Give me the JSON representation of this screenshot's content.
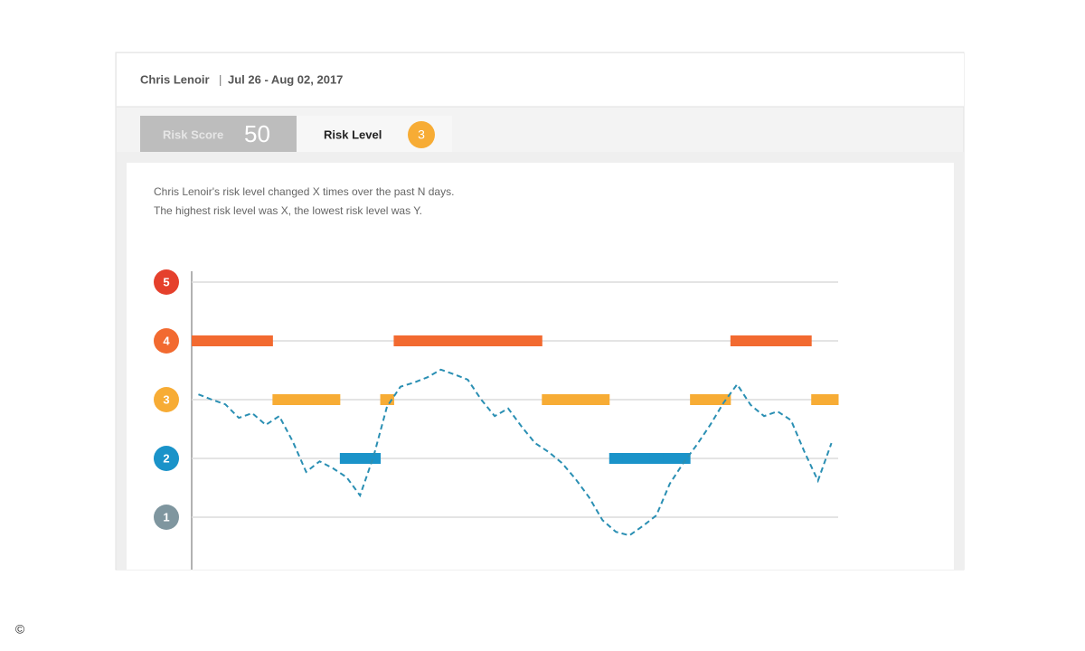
{
  "header": {
    "name": "Chris Lenoir",
    "separator": "|",
    "dates": "Jul 26 - Aug 02, 2017"
  },
  "tabs": [
    {
      "label": "Risk Score",
      "value": 50
    },
    {
      "label": "Risk Level",
      "value": 3
    }
  ],
  "description": [
    "Chris Lenoir's risk level changed X times over the past N days.",
    "The highest risk level was X, the lowest risk level was Y."
  ],
  "chart_data": {
    "type": "line",
    "categories": [
      null,
      null,
      null,
      null,
      null,
      null,
      null,
      null,
      null,
      null,
      null,
      null,
      null,
      null,
      null,
      null,
      null,
      null,
      null,
      null,
      null,
      null,
      null,
      null,
      null,
      null,
      null,
      null,
      null,
      null,
      null,
      null,
      null,
      null,
      null,
      null,
      null,
      null,
      null,
      null,
      null,
      null,
      null,
      null,
      null,
      null,
      null,
      null
    ],
    "series": [
      {
        "type": "bar",
        "values": [
          4,
          4,
          4,
          4,
          4,
          4,
          3,
          3,
          3,
          3,
          3,
          2,
          2,
          2,
          3,
          4,
          4,
          4,
          4,
          4,
          4,
          4,
          4,
          4,
          4,
          4,
          3,
          3,
          3,
          3,
          3,
          2,
          2,
          2,
          2,
          2,
          2,
          3,
          3,
          3,
          4,
          4,
          4,
          4,
          4,
          4,
          3,
          3
        ]
      },
      {
        "type": "line",
        "color": "#2a8fb3",
        "dashed": true,
        "values": [
          3.09,
          3.0,
          2.92,
          2.69,
          2.77,
          2.57,
          2.72,
          2.29,
          1.77,
          1.95,
          1.83,
          1.68,
          1.37,
          2.03,
          2.88,
          3.22,
          3.29,
          3.38,
          3.51,
          3.43,
          3.34,
          3.0,
          2.72,
          2.85,
          2.54,
          2.26,
          2.11,
          1.92,
          1.65,
          1.34,
          0.95,
          0.75,
          0.69,
          0.85,
          1.03,
          1.57,
          1.92,
          2.23,
          2.57,
          2.95,
          3.26,
          2.91,
          2.72,
          2.8,
          2.65,
          2.11,
          1.62,
          2.26
        ]
      }
    ],
    "ylim": [
      0,
      5
    ],
    "yticks": [
      1,
      2,
      3,
      4,
      5
    ],
    "level_colors": [
      "#7f969f",
      "#1a93c9",
      "#f7ac35",
      "#f26a30",
      "#e5402c"
    ],
    "grid": true
  },
  "footer": {
    "copyright": "©"
  }
}
